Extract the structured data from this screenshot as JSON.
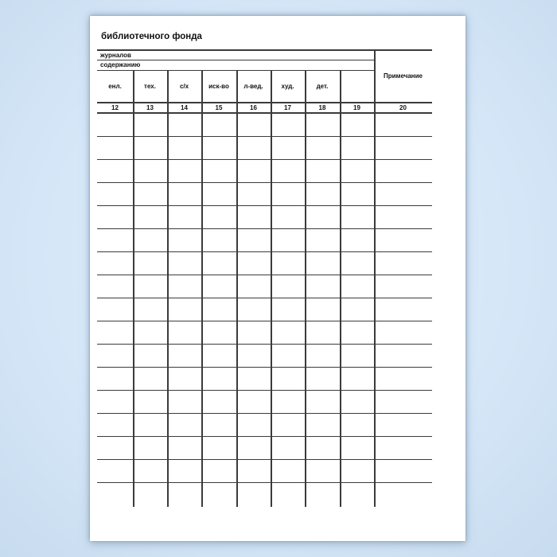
{
  "document": {
    "title": "библиотечного фонда"
  },
  "table": {
    "merged_rows": [
      {
        "label": "журналов"
      },
      {
        "label": "содержанию"
      }
    ],
    "columns": [
      {
        "label": "енл.",
        "number": "12"
      },
      {
        "label": "тех.",
        "number": "13"
      },
      {
        "label": "с/х",
        "number": "14"
      },
      {
        "label": "иск-во",
        "number": "15"
      },
      {
        "label": "л-вед.",
        "number": "16"
      },
      {
        "label": "худ.",
        "number": "17"
      },
      {
        "label": "дет.",
        "number": "18"
      },
      {
        "label": "",
        "number": "19"
      }
    ],
    "note_column": {
      "header": "Примечание",
      "number": "20"
    },
    "empty_data_rows": 16,
    "has_open_bottom_row": true
  },
  "colors": {
    "background": "#d6e7f8",
    "page": "#ffffff",
    "grid_line": "#3b3b3b",
    "text": "#111111"
  }
}
